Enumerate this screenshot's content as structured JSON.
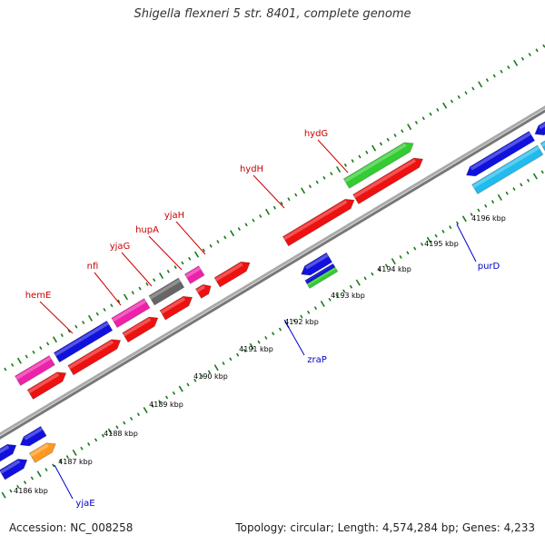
{
  "title": "Shigella flexneri 5 str. 8401, complete genome",
  "footer": {
    "accession": "Accession: NC_008258",
    "summary": "Topology: circular; Length: 4,574,284 bp; Genes: 4,233"
  },
  "colors": {
    "backbone": "#8a8a8a",
    "tick": "#1a7a1a",
    "forward_label": "#cc0000",
    "reverse_label": "#0000cc",
    "red": "#ee1111",
    "blue": "#1111dd",
    "magenta": "#ee22aa",
    "gray": "#666666",
    "green": "#33cc33",
    "cyan": "#22bbee",
    "orange": "#ff9922"
  },
  "scale_labels": [
    "4186 kbp",
    "4187 kbp",
    "4188 kbp",
    "4189 kbp",
    "4190 kbp",
    "4191 kbp",
    "4192 kbp",
    "4193 kbp",
    "4194 kbp",
    "4195 kbp",
    "4196 kbp"
  ],
  "gene_labels": {
    "forward": [
      "hemE",
      "nfi",
      "yjaG",
      "hupA",
      "yjaH",
      "hydH",
      "hydG"
    ],
    "reverse": [
      "yjaE",
      "zraP",
      "purD"
    ]
  }
}
